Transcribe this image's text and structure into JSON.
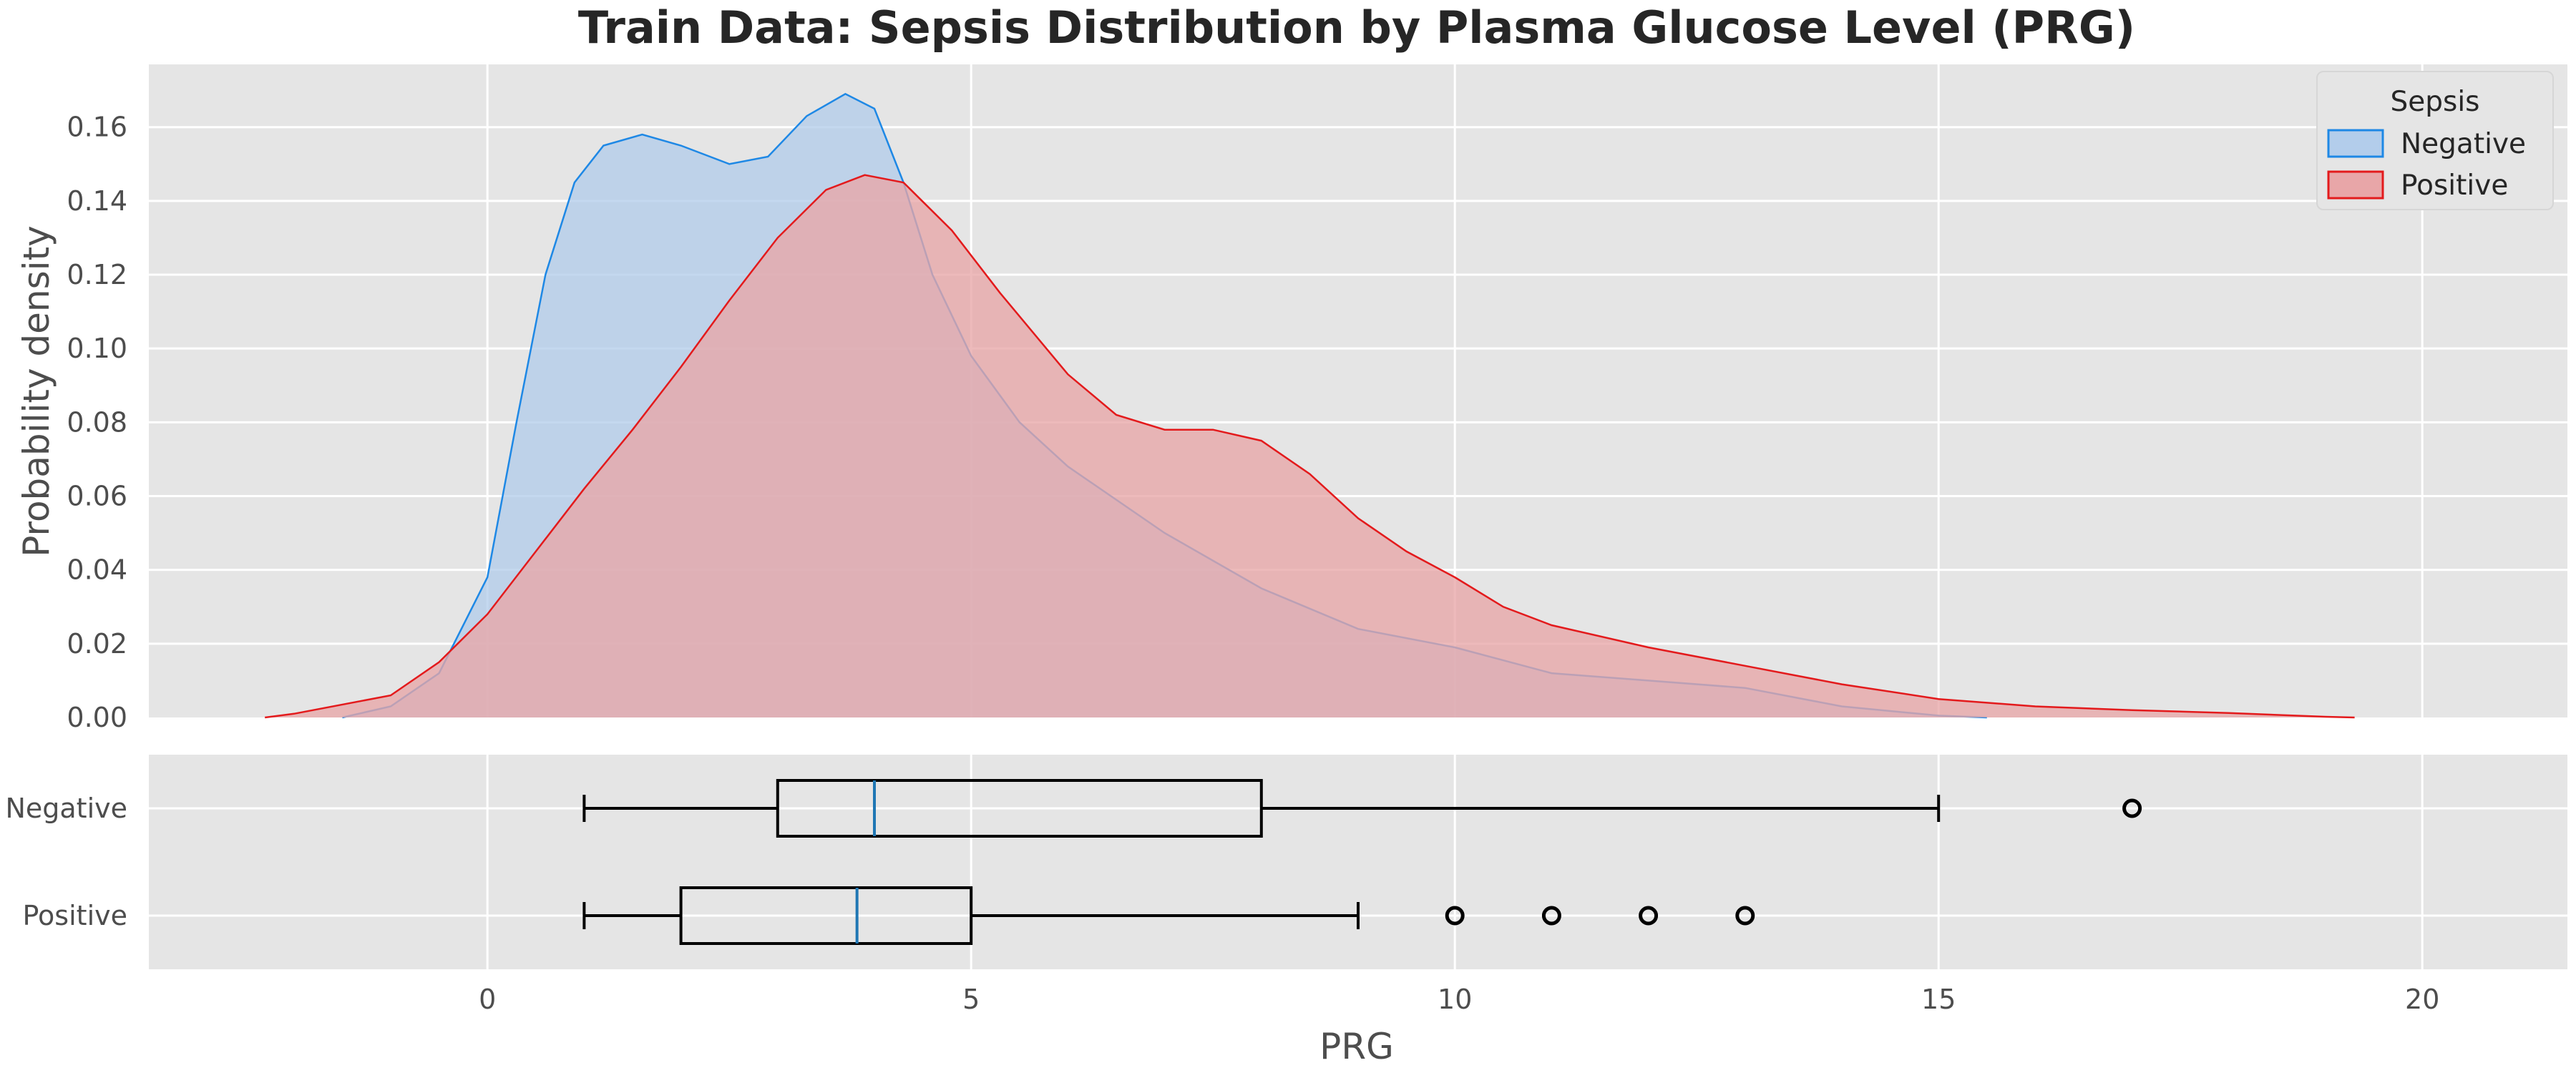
{
  "chart_data": [
    {
      "type": "area",
      "title": "Train Data: Sepsis Distribution by Plasma Glucose Level (PRG)",
      "xlabel": "PRG",
      "ylabel": "Probability density",
      "xlim": [
        -3.5,
        21.5
      ],
      "ylim": [
        0,
        0.177
      ],
      "x_ticks": [
        0,
        5,
        10,
        15,
        20
      ],
      "y_ticks": [
        0.0,
        0.02,
        0.04,
        0.06,
        0.08,
        0.1,
        0.12,
        0.14,
        0.16
      ],
      "y_tick_labels": [
        "0.00",
        "0.02",
        "0.04",
        "0.06",
        "0.08",
        "0.10",
        "0.12",
        "0.14",
        "0.16"
      ],
      "grid": true,
      "legend": {
        "title": "Sepsis",
        "position": "top-right"
      },
      "series": [
        {
          "name": "Negative",
          "color": "#1e88e5",
          "fill": "#b3cdeb",
          "points": [
            [
              -1.5,
              0
            ],
            [
              -1.0,
              0.003
            ],
            [
              -0.5,
              0.012
            ],
            [
              0,
              0.038
            ],
            [
              0.3,
              0.08
            ],
            [
              0.6,
              0.12
            ],
            [
              0.9,
              0.145
            ],
            [
              1.2,
              0.155
            ],
            [
              1.6,
              0.158
            ],
            [
              2.0,
              0.155
            ],
            [
              2.5,
              0.15
            ],
            [
              2.9,
              0.152
            ],
            [
              3.3,
              0.163
            ],
            [
              3.7,
              0.169
            ],
            [
              4.0,
              0.165
            ],
            [
              4.3,
              0.145
            ],
            [
              4.6,
              0.12
            ],
            [
              5.0,
              0.098
            ],
            [
              5.5,
              0.08
            ],
            [
              6.0,
              0.068
            ],
            [
              7.0,
              0.05
            ],
            [
              8.0,
              0.035
            ],
            [
              9.0,
              0.024
            ],
            [
              10.0,
              0.019
            ],
            [
              11.0,
              0.012
            ],
            [
              12.0,
              0.01
            ],
            [
              13.0,
              0.008
            ],
            [
              14.0,
              0.003
            ],
            [
              15.0,
              0.0005
            ],
            [
              15.5,
              0
            ]
          ]
        },
        {
          "name": "Positive",
          "color": "#e31a1c",
          "fill": "#e8a6a8",
          "points": [
            [
              -2.3,
              0
            ],
            [
              -2.0,
              0.001
            ],
            [
              -1.0,
              0.006
            ],
            [
              -0.5,
              0.015
            ],
            [
              0,
              0.028
            ],
            [
              0.5,
              0.045
            ],
            [
              1.0,
              0.062
            ],
            [
              1.5,
              0.078
            ],
            [
              2.0,
              0.095
            ],
            [
              2.5,
              0.113
            ],
            [
              3.0,
              0.13
            ],
            [
              3.5,
              0.143
            ],
            [
              3.9,
              0.147
            ],
            [
              4.3,
              0.145
            ],
            [
              4.8,
              0.132
            ],
            [
              5.3,
              0.115
            ],
            [
              6.0,
              0.093
            ],
            [
              6.5,
              0.082
            ],
            [
              7.0,
              0.078
            ],
            [
              7.5,
              0.078
            ],
            [
              8.0,
              0.075
            ],
            [
              8.5,
              0.066
            ],
            [
              9.0,
              0.054
            ],
            [
              9.5,
              0.045
            ],
            [
              10.0,
              0.038
            ],
            [
              10.5,
              0.03
            ],
            [
              11.0,
              0.025
            ],
            [
              12.0,
              0.019
            ],
            [
              13.0,
              0.014
            ],
            [
              14.0,
              0.009
            ],
            [
              15.0,
              0.005
            ],
            [
              16.0,
              0.003
            ],
            [
              17.0,
              0.002
            ],
            [
              18.0,
              0.0012
            ],
            [
              19.0,
              0.0002
            ],
            [
              19.3,
              0
            ]
          ]
        }
      ]
    },
    {
      "type": "box",
      "xlabel": "PRG",
      "categories": [
        "Negative",
        "Positive"
      ],
      "boxes": [
        {
          "name": "Negative",
          "whisker_low": 1,
          "q1": 3,
          "median": 4,
          "q3": 8,
          "whisker_high": 15,
          "outliers": [
            17
          ]
        },
        {
          "name": "Positive",
          "whisker_low": 1,
          "q1": 2,
          "median": 3.82,
          "q3": 5,
          "whisker_high": 9,
          "outliers": [
            10,
            11,
            12,
            13
          ]
        }
      ],
      "median_color": "#1f77b4"
    }
  ]
}
